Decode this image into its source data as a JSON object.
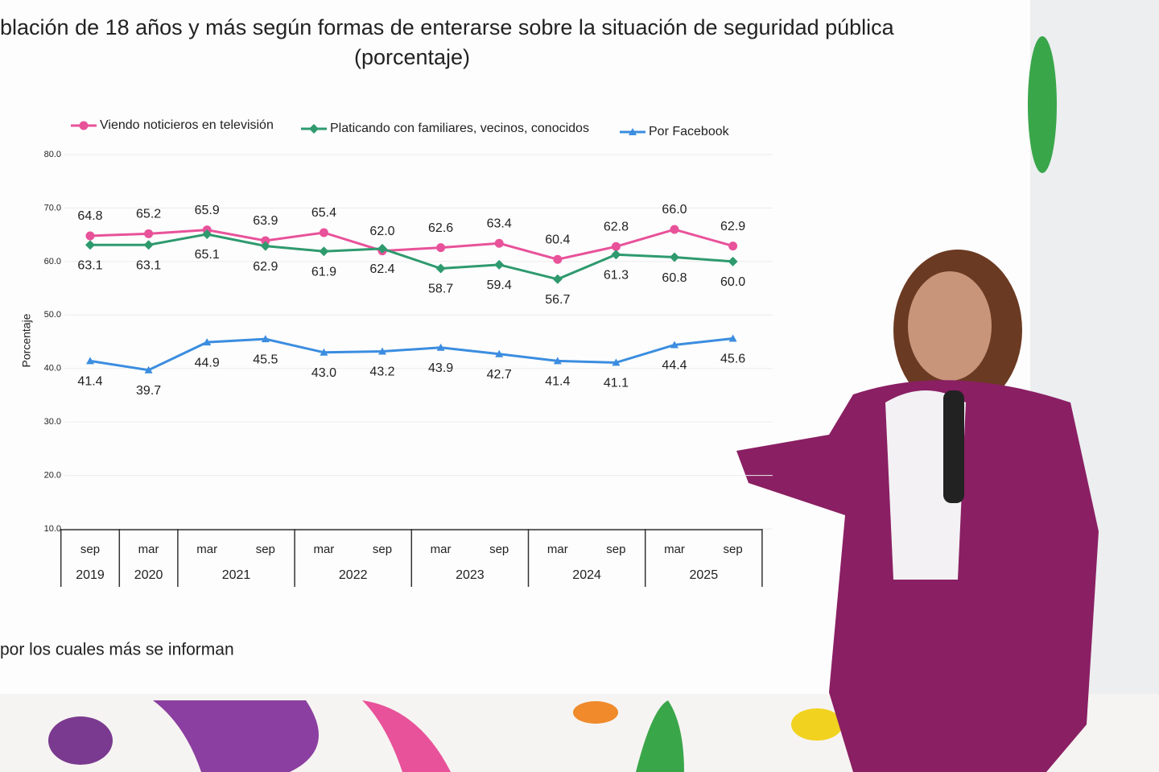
{
  "chart_data": {
    "type": "line",
    "title": "blación de 18 años y más según formas de enterarse sobre la situación de seguridad pública",
    "subtitle": "(porcentaje)",
    "ylabel": "Porcentaje",
    "categories": [
      "sep",
      "mar",
      "mar",
      "sep",
      "mar",
      "sep",
      "mar",
      "sep",
      "mar",
      "sep",
      "mar",
      "sep"
    ],
    "years": [
      "2019",
      "2020",
      "2021",
      null,
      "2022",
      null,
      "2023",
      null,
      "2024",
      null,
      "2025",
      null
    ],
    "ylim": [
      10,
      80
    ],
    "yticks": [
      {
        "value": 10,
        "label": "10.0"
      },
      {
        "value": 20,
        "label": "20.0"
      },
      {
        "value": 30,
        "label": "30.0"
      },
      {
        "value": 40,
        "label": "40.0"
      },
      {
        "value": 50,
        "label": "50.0"
      },
      {
        "value": 60,
        "label": "60.0"
      },
      {
        "value": 70,
        "label": "70.0"
      },
      {
        "value": 80,
        "label": "80.0"
      }
    ],
    "grid": true,
    "series": [
      {
        "name": "Viendo noticieros en televisión",
        "color": "#e8529a",
        "marker": "circle",
        "label_side": "above",
        "values": [
          64.8,
          65.2,
          65.9,
          63.9,
          65.4,
          62.0,
          62.6,
          63.4,
          60.4,
          62.8,
          66.0,
          62.9
        ],
        "value_labels": [
          "64.8",
          "65.2",
          "65.9",
          "63.9",
          "65.4",
          "62.0",
          "62.6",
          "63.4",
          "60.4",
          "62.8",
          "66.0",
          "62.9"
        ]
      },
      {
        "name": "Platicando con familiares, vecinos, conocidos",
        "color": "#2e9a6e",
        "marker": "diamond",
        "label_side": "below",
        "values": [
          63.1,
          63.1,
          65.1,
          62.9,
          61.9,
          62.4,
          58.7,
          59.4,
          56.7,
          61.3,
          60.8,
          60.0
        ],
        "value_labels": [
          "63.1",
          "63.1",
          "65.1",
          "62.9",
          "61.9",
          "62.4",
          "58.7",
          "59.4",
          "56.7",
          "61.3",
          "60.8",
          "60.0"
        ]
      },
      {
        "name": "Por Facebook",
        "color": "#3b8de0",
        "marker": "triangle",
        "label_side": "below",
        "values": [
          41.4,
          39.7,
          44.9,
          45.5,
          43.0,
          43.2,
          43.9,
          42.7,
          41.4,
          41.1,
          44.4,
          45.6
        ],
        "value_labels": [
          "41.4",
          "39.7",
          "44.9",
          "45.5",
          "43.0",
          "43.2",
          "43.9",
          "42.7",
          "41.4",
          "41.1",
          "44.4",
          "45.6"
        ]
      }
    ],
    "footnote": "por los cuales más se informan"
  }
}
